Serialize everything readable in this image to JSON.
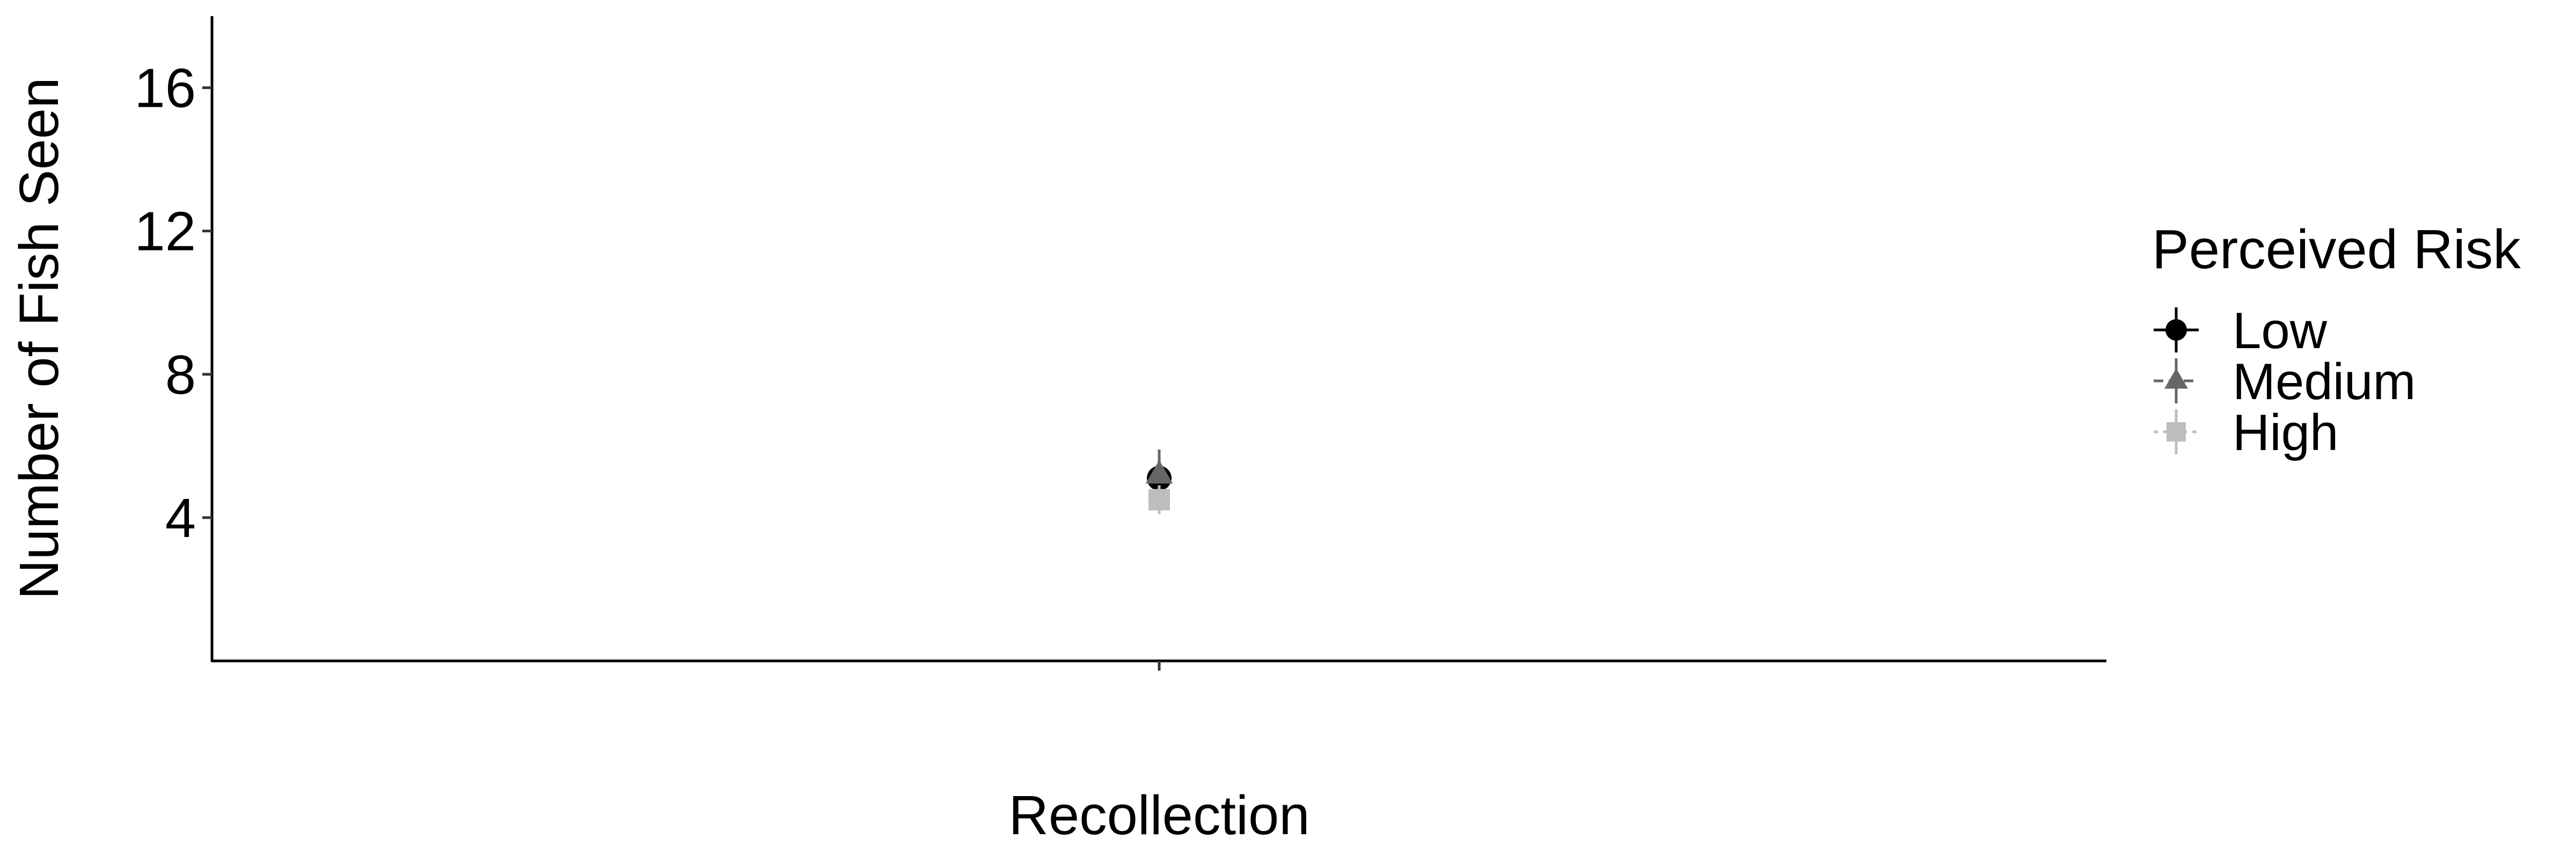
{
  "chart_data": {
    "type": "scatter",
    "title": "",
    "xlabel": "Recollection",
    "ylabel": "Number of Fish Seen",
    "categories": [
      "Recollection"
    ],
    "ylim": [
      0,
      18
    ],
    "yticks": [
      {
        "value": 4,
        "label": "4"
      },
      {
        "value": 8,
        "label": "8"
      },
      {
        "value": 12,
        "label": "12"
      },
      {
        "value": 16,
        "label": "16"
      }
    ],
    "grid": false,
    "legend": {
      "title": "Perceived Risk",
      "position": "right"
    },
    "series": [
      {
        "name": "Low",
        "shape": "circle",
        "color": "#000000",
        "values": [
          5.1
        ],
        "error_low": [
          4.6
        ],
        "error_high": [
          5.6
        ]
      },
      {
        "name": "Medium",
        "shape": "triangle",
        "color": "#666666",
        "values": [
          5.2
        ],
        "error_low": [
          4.7
        ],
        "error_high": [
          5.9
        ]
      },
      {
        "name": "High",
        "shape": "square",
        "color": "#bdbdbd",
        "values": [
          4.5
        ],
        "error_low": [
          4.1
        ],
        "error_high": [
          4.9
        ]
      }
    ]
  }
}
